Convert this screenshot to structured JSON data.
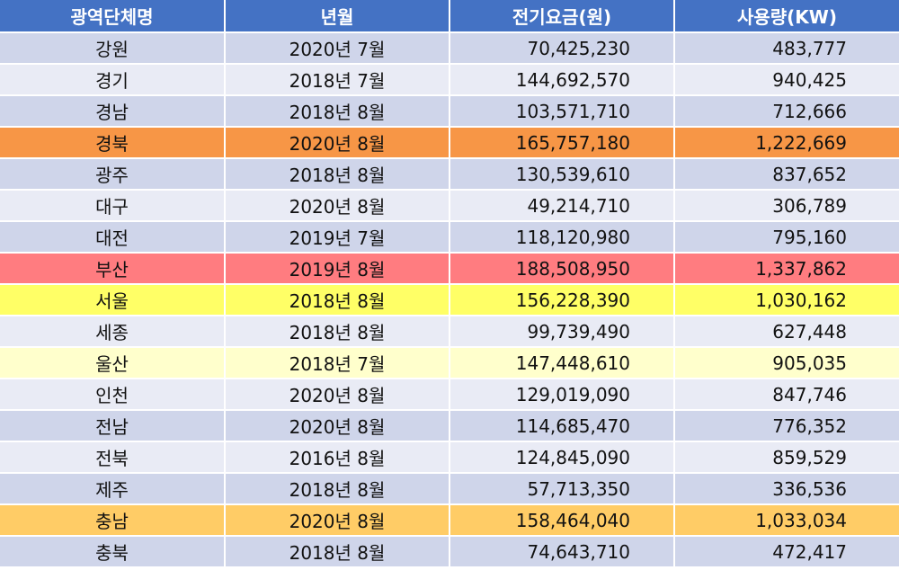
{
  "table": {
    "headers": [
      "광역단체명",
      "년월",
      "전기요금(원)",
      "사용량(KW)"
    ],
    "rows": [
      {
        "name": "강원",
        "ym": "2020년 7월",
        "fee": "70,425,230",
        "usage": "483,777",
        "style": "odd"
      },
      {
        "name": "경기",
        "ym": "2018년 7월",
        "fee": "144,692,570",
        "usage": "940,425",
        "style": "even"
      },
      {
        "name": "경남",
        "ym": "2018년 8월",
        "fee": "103,571,710",
        "usage": "712,666",
        "style": "odd"
      },
      {
        "name": "경북",
        "ym": "2020년 8월",
        "fee": "165,757,180",
        "usage": "1,222,669",
        "style": "hl-orange"
      },
      {
        "name": "광주",
        "ym": "2018년 8월",
        "fee": "130,539,610",
        "usage": "837,652",
        "style": "odd"
      },
      {
        "name": "대구",
        "ym": "2020년 8월",
        "fee": "49,214,710",
        "usage": "306,789",
        "style": "even"
      },
      {
        "name": "대전",
        "ym": "2019년 7월",
        "fee": "118,120,980",
        "usage": "795,160",
        "style": "odd"
      },
      {
        "name": "부산",
        "ym": "2019년 8월",
        "fee": "188,508,950",
        "usage": "1,337,862",
        "style": "hl-red"
      },
      {
        "name": "서울",
        "ym": "2018년 8월",
        "fee": "156,228,390",
        "usage": "1,030,162",
        "style": "hl-yellow"
      },
      {
        "name": "세종",
        "ym": "2018년 8월",
        "fee": "99,739,490",
        "usage": "627,448",
        "style": "even"
      },
      {
        "name": "울산",
        "ym": "2018년 7월",
        "fee": "147,448,610",
        "usage": "905,035",
        "style": "hl-lightyellow"
      },
      {
        "name": "인천",
        "ym": "2020년 8월",
        "fee": "129,019,090",
        "usage": "847,746",
        "style": "even"
      },
      {
        "name": "전남",
        "ym": "2020년 8월",
        "fee": "114,685,470",
        "usage": "776,352",
        "style": "odd"
      },
      {
        "name": "전북",
        "ym": "2016년 8월",
        "fee": "124,845,090",
        "usage": "859,529",
        "style": "even"
      },
      {
        "name": "제주",
        "ym": "2018년 8월",
        "fee": "57,713,350",
        "usage": "336,536",
        "style": "odd"
      },
      {
        "name": "충남",
        "ym": "2020년 8월",
        "fee": "158,464,040",
        "usage": "1,033,034",
        "style": "hl-amber"
      },
      {
        "name": "충북",
        "ym": "2018년 8월",
        "fee": "74,643,710",
        "usage": "472,417",
        "style": "odd"
      }
    ]
  },
  "colors": {
    "header_bg": "#4472c4",
    "row_odd": "#cfd5ea",
    "row_even": "#e9ebf5",
    "highlight_orange": "#f79646",
    "highlight_red": "#ff7c80",
    "highlight_yellow": "#ffff66",
    "highlight_lightyellow": "#ffffcc",
    "highlight_amber": "#ffcc66"
  }
}
